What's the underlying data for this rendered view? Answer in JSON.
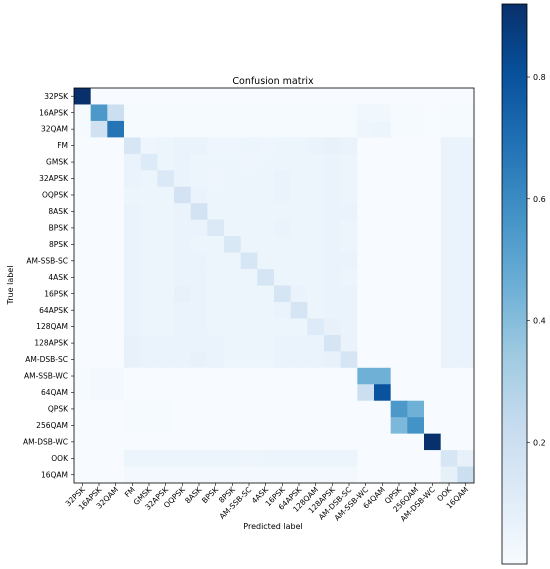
{
  "chart_data": {
    "type": "heatmap",
    "title": "Confusion matrix",
    "xlabel": "Predicted label",
    "ylabel": "True label",
    "labels": [
      "32PSK",
      "16APSK",
      "32QAM",
      "FM",
      "GMSK",
      "32APSK",
      "OQPSK",
      "8ASK",
      "BPSK",
      "8PSK",
      "AM-SSB-SC",
      "4ASK",
      "16PSK",
      "64APSK",
      "128QAM",
      "128APSK",
      "AM-DSB-SC",
      "AM-SSB-WC",
      "64QAM",
      "QPSK",
      "256QAM",
      "AM-DSB-WC",
      "OOK",
      "16QAM"
    ],
    "colormap": "Blues",
    "vmin": 0,
    "vmax": 0.92,
    "colorbar_ticks": [
      0.2,
      0.4,
      0.6,
      0.8
    ],
    "colorbar_tick_labels": [
      "0.2",
      "0.4",
      "0.6",
      "0.8"
    ],
    "values": [
      [
        0.92,
        0,
        0,
        0,
        0,
        0,
        0,
        0,
        0,
        0,
        0,
        0,
        0,
        0,
        0,
        0,
        0,
        0,
        0,
        0,
        0,
        0,
        0,
        0
      ],
      [
        0.01,
        0.55,
        0.2,
        0.01,
        0.01,
        0.01,
        0.01,
        0.01,
        0.01,
        0.01,
        0.01,
        0.01,
        0.01,
        0.01,
        0.01,
        0.01,
        0.01,
        0.03,
        0.03,
        0.01,
        0.01,
        0,
        0.01,
        0.01
      ],
      [
        0.01,
        0.18,
        0.68,
        0.01,
        0.01,
        0.01,
        0.01,
        0.01,
        0.01,
        0.01,
        0.01,
        0.01,
        0.01,
        0.01,
        0.01,
        0.01,
        0.01,
        0.04,
        0.05,
        0.01,
        0.01,
        0,
        0.01,
        0.01
      ],
      [
        0,
        0,
        0,
        0.15,
        0.04,
        0.05,
        0.06,
        0.06,
        0.04,
        0.04,
        0.05,
        0.04,
        0.05,
        0.05,
        0.06,
        0.07,
        0.06,
        0,
        0,
        0,
        0,
        0,
        0.06,
        0.06
      ],
      [
        0,
        0,
        0,
        0.06,
        0.12,
        0.05,
        0.06,
        0.05,
        0.05,
        0.05,
        0.04,
        0.05,
        0.05,
        0.05,
        0.05,
        0.06,
        0.05,
        0,
        0,
        0,
        0,
        0,
        0.06,
        0.06
      ],
      [
        0,
        0,
        0,
        0.06,
        0.05,
        0.13,
        0.06,
        0.05,
        0.04,
        0.05,
        0.05,
        0.05,
        0.06,
        0.05,
        0.05,
        0.06,
        0.05,
        0,
        0,
        0,
        0,
        0,
        0.06,
        0.06
      ],
      [
        0,
        0,
        0,
        0.05,
        0.05,
        0.05,
        0.17,
        0.06,
        0.05,
        0.05,
        0.05,
        0.05,
        0.06,
        0.05,
        0.05,
        0.06,
        0.05,
        0,
        0,
        0,
        0,
        0,
        0.06,
        0.06
      ],
      [
        0,
        0,
        0,
        0.06,
        0.05,
        0.05,
        0.06,
        0.17,
        0.05,
        0.05,
        0.05,
        0.05,
        0.05,
        0.05,
        0.05,
        0.06,
        0.06,
        0,
        0,
        0,
        0,
        0,
        0.06,
        0.06
      ],
      [
        0,
        0,
        0,
        0.06,
        0.05,
        0.05,
        0.06,
        0.06,
        0.13,
        0.05,
        0.05,
        0.05,
        0.06,
        0.05,
        0.05,
        0.06,
        0.05,
        0,
        0,
        0,
        0,
        0,
        0.06,
        0.06
      ],
      [
        0,
        0,
        0,
        0.06,
        0.05,
        0.05,
        0.06,
        0.05,
        0.05,
        0.14,
        0.05,
        0.05,
        0.05,
        0.05,
        0.05,
        0.06,
        0.05,
        0,
        0,
        0,
        0,
        0,
        0.06,
        0.06
      ],
      [
        0,
        0,
        0,
        0.06,
        0.05,
        0.05,
        0.06,
        0.06,
        0.05,
        0.05,
        0.15,
        0.05,
        0.05,
        0.05,
        0.05,
        0.06,
        0.06,
        0,
        0,
        0,
        0,
        0,
        0.06,
        0.06
      ],
      [
        0,
        0,
        0,
        0.06,
        0.05,
        0.05,
        0.06,
        0.06,
        0.05,
        0.05,
        0.05,
        0.16,
        0.05,
        0.05,
        0.05,
        0.06,
        0.05,
        0,
        0,
        0,
        0,
        0,
        0.06,
        0.06
      ],
      [
        0,
        0,
        0,
        0.06,
        0.05,
        0.05,
        0.07,
        0.06,
        0.05,
        0.05,
        0.05,
        0.05,
        0.16,
        0.06,
        0.05,
        0.06,
        0.06,
        0,
        0,
        0,
        0,
        0,
        0.06,
        0.06
      ],
      [
        0,
        0,
        0,
        0.06,
        0.05,
        0.05,
        0.06,
        0.06,
        0.05,
        0.05,
        0.05,
        0.05,
        0.06,
        0.16,
        0.05,
        0.06,
        0.06,
        0,
        0,
        0,
        0,
        0,
        0.06,
        0.06
      ],
      [
        0,
        0,
        0,
        0.06,
        0.05,
        0.05,
        0.06,
        0.06,
        0.05,
        0.05,
        0.05,
        0.05,
        0.05,
        0.05,
        0.12,
        0.07,
        0.06,
        0,
        0,
        0,
        0,
        0,
        0.06,
        0.06
      ],
      [
        0,
        0,
        0,
        0.07,
        0.06,
        0.06,
        0.06,
        0.06,
        0.06,
        0.05,
        0.05,
        0.05,
        0.06,
        0.06,
        0.06,
        0.16,
        0.06,
        0,
        0,
        0,
        0,
        0,
        0.06,
        0.06
      ],
      [
        0,
        0,
        0,
        0.07,
        0.06,
        0.06,
        0.06,
        0.07,
        0.06,
        0.05,
        0.05,
        0.05,
        0.06,
        0.06,
        0.06,
        0.07,
        0.16,
        0,
        0,
        0,
        0,
        0,
        0.06,
        0.06
      ],
      [
        0.01,
        0.02,
        0.02,
        0,
        0,
        0,
        0,
        0,
        0,
        0,
        0,
        0,
        0,
        0,
        0,
        0,
        0,
        0.45,
        0.45,
        0,
        0,
        0,
        0,
        0
      ],
      [
        0.01,
        0.02,
        0.02,
        0,
        0,
        0,
        0,
        0,
        0,
        0,
        0,
        0,
        0,
        0,
        0,
        0,
        0,
        0.2,
        0.8,
        0,
        0,
        0,
        0,
        0
      ],
      [
        0,
        0,
        0,
        0.01,
        0.01,
        0.01,
        0,
        0,
        0,
        0,
        0,
        0,
        0,
        0,
        0,
        0,
        0,
        0,
        0,
        0.55,
        0.45,
        0,
        0,
        0
      ],
      [
        0,
        0,
        0,
        0.01,
        0.01,
        0.01,
        0,
        0,
        0,
        0,
        0,
        0,
        0,
        0,
        0,
        0,
        0,
        0,
        0,
        0.42,
        0.57,
        0,
        0,
        0
      ],
      [
        0,
        0,
        0,
        0,
        0,
        0,
        0,
        0,
        0,
        0,
        0,
        0,
        0,
        0,
        0,
        0,
        0,
        0,
        0,
        0,
        0,
        0.95,
        0,
        0
      ],
      [
        0,
        0,
        0,
        0.05,
        0.05,
        0.05,
        0.05,
        0.05,
        0.05,
        0.05,
        0.04,
        0.05,
        0.05,
        0.05,
        0.05,
        0.05,
        0.05,
        0,
        0,
        0,
        0,
        0,
        0.15,
        0.07
      ],
      [
        0,
        0,
        0,
        0.02,
        0.02,
        0.02,
        0.02,
        0.02,
        0.02,
        0.02,
        0.02,
        0.02,
        0.02,
        0.02,
        0.02,
        0.02,
        0.02,
        0,
        0,
        0,
        0,
        0,
        0.08,
        0.2
      ]
    ]
  }
}
